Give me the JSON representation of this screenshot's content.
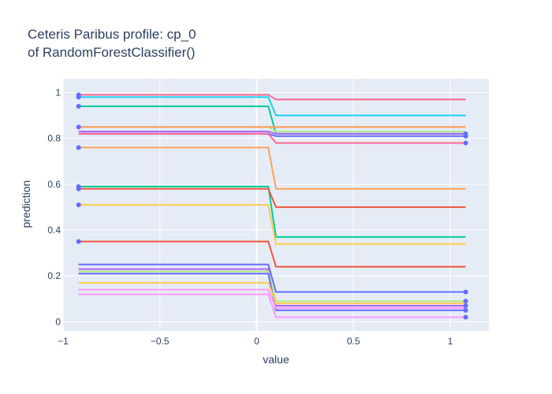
{
  "chart_data": {
    "type": "line",
    "title_lines": [
      "Ceteris Paribus profile: cp_0",
      "of RandomForestClassifier()"
    ],
    "xlabel": "value",
    "ylabel": "prediction",
    "xlim": [
      -1.0,
      1.2
    ],
    "ylim": [
      -0.04,
      1.06
    ],
    "xticks": [
      -1,
      -0.5,
      0,
      0.5,
      1
    ],
    "xtick_labels": [
      "−1",
      "−0.5",
      "0",
      "0.5",
      "1"
    ],
    "yticks": [
      0,
      0.2,
      0.4,
      0.6,
      0.8,
      1
    ],
    "ytick_labels": [
      "0",
      "0.2",
      "0.4",
      "0.6",
      "0.8",
      "1"
    ],
    "grid": true,
    "legend": "none",
    "plot_background": "#e5ecf6",
    "marker_color": "#636efa",
    "x_steps": [
      -0.92,
      0.06,
      0.1,
      1.08
    ],
    "series": [
      {
        "color": "#ff6692",
        "values": [
          0.99,
          0.99,
          0.97,
          0.97
        ]
      },
      {
        "color": "#19d3f3",
        "values": [
          0.98,
          0.98,
          0.9,
          0.9
        ]
      },
      {
        "color": "#00cc96",
        "values": [
          0.94,
          0.94,
          0.82,
          0.82
        ]
      },
      {
        "color": "#b6e880",
        "values": [
          0.85,
          0.85,
          0.83,
          0.83
        ]
      },
      {
        "color": "#fecb52",
        "values": [
          0.85,
          0.85,
          0.85,
          0.85
        ]
      },
      {
        "color": "#ff97ff",
        "values": [
          0.85,
          0.85,
          0.85,
          0.85
        ]
      },
      {
        "color": "#ffa15a",
        "values": [
          0.85,
          0.85,
          0.85,
          0.85
        ]
      },
      {
        "color": "#ab63fa",
        "values": [
          0.83,
          0.83,
          0.82,
          0.82
        ]
      },
      {
        "color": "#636efa",
        "values": [
          0.82,
          0.82,
          0.81,
          0.81
        ]
      },
      {
        "color": "#ff6692",
        "values": [
          0.82,
          0.82,
          0.78,
          0.78
        ]
      },
      {
        "color": "#ffa15a",
        "values": [
          0.76,
          0.76,
          0.58,
          0.58
        ]
      },
      {
        "color": "#00cc96",
        "values": [
          0.59,
          0.59,
          0.37,
          0.37
        ]
      },
      {
        "color": "#ef553b",
        "values": [
          0.58,
          0.58,
          0.5,
          0.5
        ]
      },
      {
        "color": "#fecb52",
        "values": [
          0.51,
          0.51,
          0.34,
          0.34
        ]
      },
      {
        "color": "#ef553b",
        "values": [
          0.35,
          0.35,
          0.24,
          0.24
        ]
      },
      {
        "color": "#636efa",
        "values": [
          0.25,
          0.25,
          0.13,
          0.13
        ]
      },
      {
        "color": "#ab63fa",
        "values": [
          0.23,
          0.23,
          0.07,
          0.07
        ]
      },
      {
        "color": "#b6e880",
        "values": [
          0.22,
          0.22,
          0.09,
          0.09
        ]
      },
      {
        "color": "#636efa",
        "values": [
          0.21,
          0.21,
          0.05,
          0.05
        ]
      },
      {
        "color": "#fecb52",
        "values": [
          0.17,
          0.17,
          0.08,
          0.08
        ]
      },
      {
        "color": "#ff97ff",
        "values": [
          0.14,
          0.14,
          0.06,
          0.06
        ]
      },
      {
        "color": "#ff97ff",
        "values": [
          0.12,
          0.12,
          0.02,
          0.02
        ]
      }
    ],
    "points": [
      {
        "x": -0.92,
        "y": 0.99
      },
      {
        "x": -0.92,
        "y": 0.98
      },
      {
        "x": -0.92,
        "y": 0.94
      },
      {
        "x": -0.92,
        "y": 0.85
      },
      {
        "x": -0.92,
        "y": 0.76
      },
      {
        "x": -0.92,
        "y": 0.59
      },
      {
        "x": -0.92,
        "y": 0.58
      },
      {
        "x": -0.92,
        "y": 0.51
      },
      {
        "x": -0.92,
        "y": 0.35
      },
      {
        "x": 1.08,
        "y": 0.82
      },
      {
        "x": 1.08,
        "y": 0.81
      },
      {
        "x": 1.08,
        "y": 0.78
      },
      {
        "x": 1.08,
        "y": 0.13
      },
      {
        "x": 1.08,
        "y": 0.09
      },
      {
        "x": 1.08,
        "y": 0.07
      },
      {
        "x": 1.08,
        "y": 0.05
      },
      {
        "x": 1.08,
        "y": 0.02
      }
    ]
  }
}
